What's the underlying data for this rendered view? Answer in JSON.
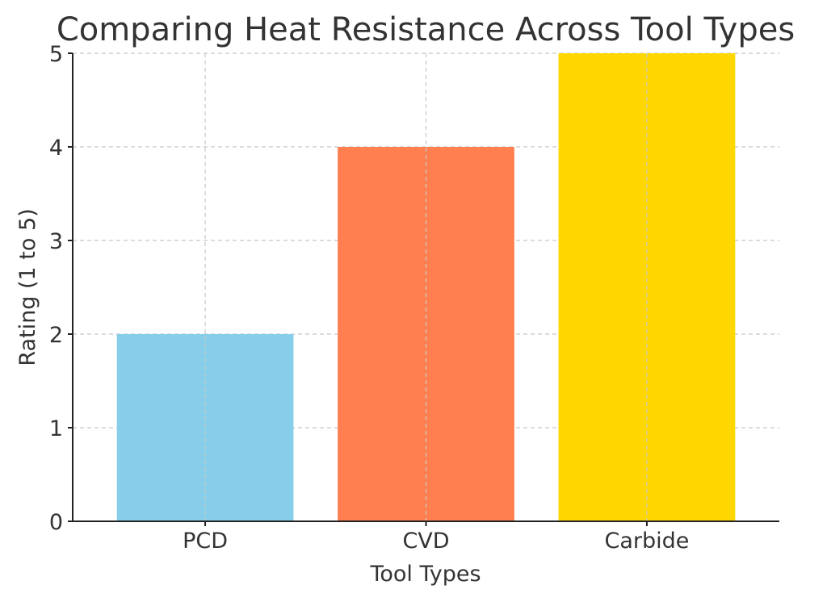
{
  "chart_data": {
    "type": "bar",
    "title": "Comparing Heat Resistance Across Tool Types",
    "xlabel": "Tool Types",
    "ylabel": "Rating (1 to 5)",
    "categories": [
      "PCD",
      "CVD",
      "Carbide"
    ],
    "values": [
      2,
      4,
      5
    ],
    "colors": [
      "#87ceeb",
      "#ff7f50",
      "#ffd700"
    ],
    "ylim": [
      0,
      5
    ],
    "yticks": [
      "0",
      "1",
      "2",
      "3",
      "4",
      "5"
    ],
    "grid": true,
    "grid_color": "#c8c8c8"
  }
}
